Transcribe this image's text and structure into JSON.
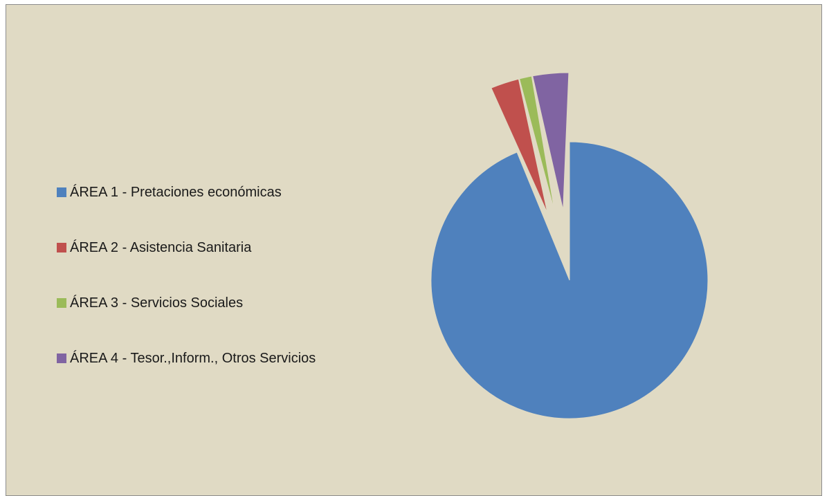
{
  "chart_data": {
    "type": "pie",
    "title": "",
    "legend_position": "left",
    "exploded": true,
    "start_angle": "12 o'clock",
    "direction": "clockwise",
    "series": [
      {
        "name": "",
        "slices": [
          {
            "label": "ÁREA 1 - Pretaciones económicas",
            "value": 93.8,
            "color": "#4f81bd"
          },
          {
            "label": "ÁREA 2 - Asistencia Sanitaria",
            "value": 2.3,
            "color": "#c0504d"
          },
          {
            "label": "ÁREA 3 - Servicios Sociales",
            "value": 1.0,
            "color": "#9bbb59"
          },
          {
            "label": "ÁREA 4 - Tesor.,Inform., Otros Servicios",
            "value": 2.9,
            "color": "#8064a2"
          }
        ]
      }
    ]
  },
  "colors": {
    "plot_background": "#e0dac4",
    "border": "#8c8c8c"
  }
}
